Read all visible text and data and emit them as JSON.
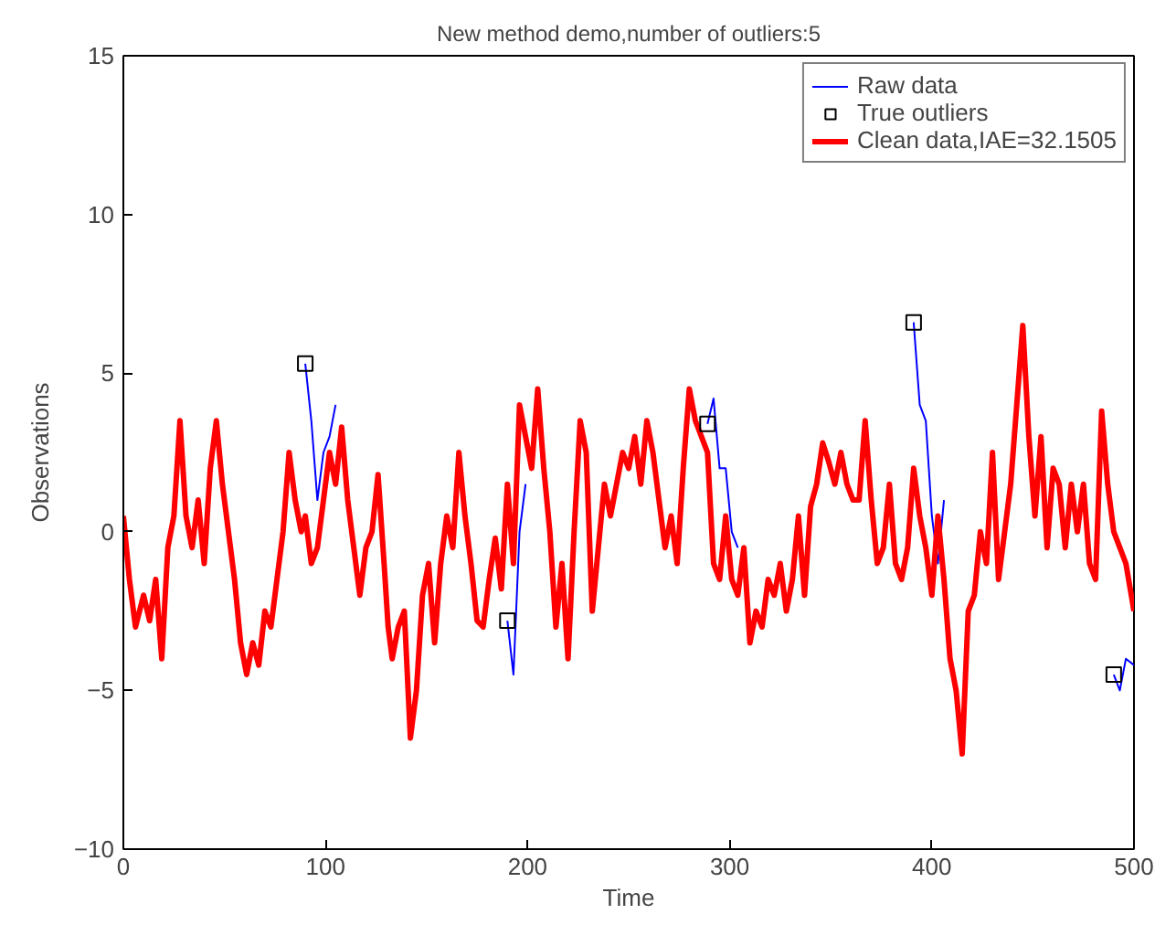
{
  "chart_data": {
    "type": "line",
    "title": "New method demo,number of outliers:5",
    "xlabel": "Time",
    "ylabel": "Observations",
    "x": [
      0,
      3,
      6,
      10,
      13,
      16,
      19,
      22,
      25,
      28,
      31,
      34,
      37,
      40,
      43,
      46,
      49,
      52,
      55,
      58,
      61,
      64,
      67,
      70,
      73,
      76,
      79,
      82,
      85,
      88,
      90,
      93,
      96,
      99,
      102,
      105,
      108,
      111,
      114,
      117,
      120,
      123,
      126,
      129,
      131,
      133,
      136,
      139,
      142,
      145,
      148,
      151,
      154,
      157,
      160,
      163,
      166,
      169,
      172,
      175,
      178,
      181,
      184,
      187,
      190,
      193,
      196,
      199,
      202,
      205,
      208,
      211,
      214,
      217,
      220,
      223,
      226,
      229,
      232,
      235,
      238,
      241,
      244,
      247,
      250,
      253,
      256,
      259,
      262,
      265,
      268,
      271,
      274,
      277,
      280,
      283,
      286,
      289,
      292,
      295,
      298,
      301,
      304,
      307,
      310,
      313,
      316,
      319,
      322,
      325,
      328,
      331,
      334,
      337,
      340,
      343,
      346,
      349,
      352,
      355,
      358,
      361,
      364,
      367,
      370,
      373,
      376,
      379,
      382,
      385,
      388,
      391,
      394,
      397,
      400,
      403,
      406,
      409,
      412,
      415,
      418,
      421,
      424,
      427,
      430,
      433,
      436,
      439,
      442,
      445,
      448,
      451,
      454,
      457,
      460,
      463,
      466,
      469,
      472,
      475,
      478,
      481,
      484,
      487,
      490,
      493,
      496,
      500
    ],
    "series": [
      {
        "name": "Raw data",
        "color": "#0000ff",
        "values": [
          null,
          null,
          null,
          null,
          null,
          null,
          null,
          null,
          null,
          null,
          null,
          null,
          null,
          null,
          null,
          null,
          null,
          null,
          null,
          null,
          null,
          null,
          null,
          null,
          null,
          null,
          null,
          null,
          null,
          null,
          5.3,
          3.5,
          1,
          2.5,
          3,
          4,
          null,
          null,
          null,
          null,
          null,
          null,
          null,
          null,
          null,
          null,
          null,
          null,
          null,
          null,
          null,
          null,
          null,
          null,
          null,
          null,
          null,
          null,
          null,
          null,
          null,
          null,
          null,
          null,
          -2.8,
          -4.5,
          0,
          1.5,
          null,
          null,
          null,
          null,
          null,
          null,
          null,
          null,
          null,
          null,
          null,
          null,
          null,
          null,
          null,
          null,
          null,
          null,
          null,
          null,
          null,
          null,
          null,
          null,
          null,
          null,
          null,
          null,
          null,
          3.4,
          4.2,
          2,
          2,
          0,
          -0.5,
          null,
          null,
          null,
          null,
          null,
          null,
          null,
          null,
          null,
          null,
          null,
          null,
          null,
          null,
          null,
          null,
          null,
          null,
          null,
          null,
          null,
          null,
          null,
          null,
          null,
          null,
          null,
          null,
          6.6,
          4,
          3.5,
          0.5,
          -1,
          1,
          null,
          null,
          null,
          null,
          null,
          null,
          null,
          null,
          null,
          null,
          null,
          null,
          null,
          null,
          null,
          null,
          null,
          null,
          null,
          null,
          null,
          null,
          null,
          null,
          null,
          null,
          null,
          -4.5,
          -5,
          -4,
          -4.2
        ]
      },
      {
        "name": "True outliers",
        "type": "scatter",
        "marker": "square",
        "color": "#000000",
        "x": [
          90,
          190,
          289,
          391,
          490
        ],
        "values": [
          5.3,
          -2.8,
          3.4,
          6.6,
          -4.5
        ]
      },
      {
        "name": "Clean data,IAE=32.1505",
        "color": "#ff0000",
        "values": [
          0.5,
          -1.5,
          -3,
          -2,
          -2.8,
          -1.5,
          -4,
          -0.5,
          0.5,
          3.5,
          0.5,
          -0.5,
          1,
          -1,
          2,
          3.5,
          1.5,
          0,
          -1.5,
          -3.5,
          -4.5,
          -3.5,
          -4.2,
          -2.5,
          -3,
          -1.5,
          0,
          2.5,
          1,
          0,
          0.5,
          -1,
          -0.5,
          1,
          2.5,
          1.5,
          3.3,
          1,
          -0.5,
          -2,
          -0.5,
          0,
          1.8,
          -1,
          -3,
          -4,
          -3,
          -2.5,
          -6.5,
          -5,
          -2,
          -1,
          -3.5,
          -1,
          0.5,
          -0.5,
          2.5,
          0.5,
          -1,
          -2.8,
          -3,
          -1.5,
          -0.2,
          -1.8,
          1.5,
          -1,
          4,
          3,
          2,
          4.5,
          2,
          0,
          -3,
          -1,
          -4,
          0,
          3.5,
          2.5,
          -2.5,
          -0.5,
          1.5,
          0.5,
          1.5,
          2.5,
          2,
          3,
          1.5,
          3.5,
          2.5,
          1,
          -0.5,
          0.5,
          -1,
          2,
          4.5,
          3.5,
          3,
          2.5,
          -1,
          -1.5,
          0.5,
          -1.5,
          -2,
          -0.5,
          -3.5,
          -2.5,
          -3,
          -1.5,
          -2,
          -1,
          -2.5,
          -1.5,
          0.5,
          -2,
          0.8,
          1.5,
          2.8,
          2.2,
          1.5,
          2.5,
          1.5,
          1,
          1,
          3.5,
          1,
          -1,
          -0.5,
          1.5,
          -1,
          -1.5,
          -0.5,
          2,
          0.5,
          -0.5,
          -2,
          0.5,
          -1.5,
          -4,
          -5,
          -7,
          -2.5,
          -2,
          0,
          -1,
          2.5,
          -1.5,
          0,
          1.5,
          4,
          6.5,
          3,
          0.5,
          3,
          -0.5,
          2,
          1.5,
          -0.5,
          1.5,
          0,
          1.5,
          -1,
          -1.5,
          3.8,
          1.5,
          0,
          -0.5,
          -1,
          -2.5
        ]
      }
    ],
    "xlim": [
      0,
      500
    ],
    "ylim": [
      -10,
      15
    ],
    "xticks": [
      0,
      100,
      200,
      300,
      400,
      500
    ],
    "yticks": [
      -10,
      -5,
      0,
      5,
      10,
      15
    ],
    "grid": false,
    "legend": "top right"
  }
}
